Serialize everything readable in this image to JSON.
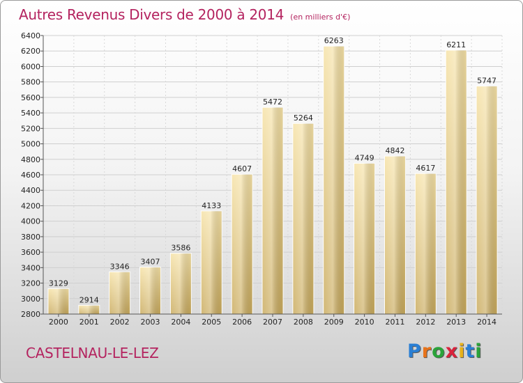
{
  "header": {
    "title": "Autres Revenus Divers de 2000 à 2014",
    "subtitle": "(en milliers d'€)"
  },
  "footer": {
    "commune": "CASTELNAU-LE-LEZ"
  },
  "logo": {
    "text": "Proxiti",
    "letters": [
      {
        "char": "P",
        "color": "#2a7fd4"
      },
      {
        "char": "r",
        "color": "#e8731a"
      },
      {
        "char": "o",
        "color": "#2aa33a"
      },
      {
        "char": "x",
        "color": "#d9233c"
      },
      {
        "char": "i",
        "color": "#e8b21a"
      },
      {
        "char": "t",
        "color": "#2a7fd4"
      },
      {
        "char": "i",
        "color": "#2aa33a"
      }
    ]
  },
  "chart_data": {
    "type": "bar",
    "title": "Autres Revenus Divers de 2000 à 2014",
    "subtitle": "(en milliers d'€)",
    "xlabel": "",
    "ylabel": "",
    "categories": [
      "2000",
      "2001",
      "2002",
      "2003",
      "2004",
      "2005",
      "2006",
      "2007",
      "2008",
      "2009",
      "2010",
      "2011",
      "2012",
      "2013",
      "2014"
    ],
    "values": [
      3129,
      2914,
      3346,
      3407,
      3586,
      4133,
      4607,
      5472,
      5264,
      6263,
      4749,
      4842,
      4617,
      6211,
      5747
    ],
    "ylim": [
      2800,
      6400
    ],
    "yticks": [
      2800,
      3000,
      3200,
      3400,
      3600,
      3800,
      4000,
      4200,
      4400,
      4600,
      4800,
      5000,
      5200,
      5400,
      5600,
      5800,
      6000,
      6200,
      6400
    ],
    "grid": "horizontal",
    "bar_color_light": "#f6e2a6",
    "bar_color_dark": "#c9aa5c",
    "text_color": "#b4235f"
  }
}
